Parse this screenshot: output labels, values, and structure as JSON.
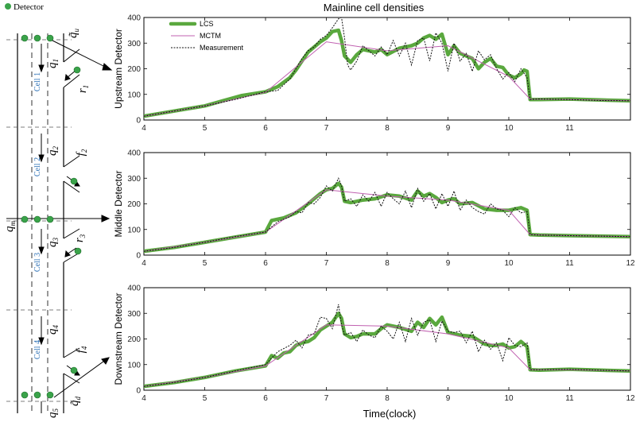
{
  "title": "Mainline cell densities",
  "xlabel": "Time(clock)",
  "detector_legend": "Detector",
  "colors": {
    "lcs": "#5aa83e",
    "mctm": "#c060b0",
    "measurement": "#111111",
    "detector": "#3aa34a",
    "cell_label": "#2a6fb5"
  },
  "diagram": {
    "cells": [
      "Cell 1",
      "Cell 2",
      "Cell 3",
      "Cell 4"
    ],
    "labels": {
      "qm": "q",
      "qm_sub": "m",
      "q1": "q",
      "q1_sub": "1",
      "q2": "q",
      "q2_sub": "2",
      "q3": "q",
      "q3_sub": "3",
      "q4": "q",
      "q4_sub": "4",
      "q5": "q",
      "q5_sub": "5",
      "qu": "q̃",
      "qu_sub": "u",
      "qd": "q̃",
      "qd_sub": "d",
      "r1": "r",
      "r1_sub": "1",
      "r3": "r",
      "r3_sub": "3",
      "f2": "f",
      "f2_sub": "2",
      "f4": "f",
      "f4_sub": "4"
    }
  },
  "chart_data": [
    {
      "type": "line",
      "ylabel": "Upstream Detector",
      "xlim": [
        4,
        12
      ],
      "ylim": [
        0,
        400
      ],
      "xticks": [
        "4",
        "5",
        "6",
        "7",
        "8",
        "9",
        "10",
        "11"
      ],
      "yticks": [
        "0",
        "100",
        "200",
        "300",
        "400"
      ],
      "legend": {
        "position": "top-left",
        "entries": [
          "LCS",
          "MCTM",
          "Measurement"
        ]
      },
      "series": [
        {
          "name": "LCS",
          "x": [
            4,
            4.5,
            5,
            5.3,
            5.6,
            6,
            6.2,
            6.4,
            6.5,
            6.6,
            6.7,
            6.8,
            6.9,
            7.0,
            7.1,
            7.2,
            7.25,
            7.3,
            7.4,
            7.5,
            7.6,
            7.7,
            7.8,
            7.9,
            8.0,
            8.2,
            8.4,
            8.5,
            8.6,
            8.7,
            8.8,
            8.9,
            9.0,
            9.1,
            9.2,
            9.3,
            9.4,
            9.5,
            9.6,
            9.7,
            9.8,
            9.9,
            10.0,
            10.1,
            10.2,
            10.25,
            10.3,
            10.35,
            10.5,
            11,
            11.5,
            12
          ],
          "y": [
            15,
            35,
            55,
            75,
            95,
            110,
            130,
            165,
            195,
            230,
            265,
            285,
            305,
            320,
            345,
            350,
            310,
            250,
            225,
            255,
            275,
            270,
            265,
            275,
            255,
            280,
            290,
            300,
            320,
            330,
            315,
            335,
            255,
            290,
            260,
            250,
            240,
            200,
            225,
            240,
            210,
            205,
            175,
            165,
            180,
            195,
            190,
            80,
            80,
            82,
            78,
            75
          ]
        },
        {
          "name": "MCTM",
          "x": [
            4,
            5,
            6,
            7,
            8,
            9,
            10,
            10.35,
            11,
            12
          ],
          "y": [
            15,
            55,
            108,
            305,
            270,
            290,
            170,
            82,
            80,
            75
          ]
        },
        {
          "name": "Measurement",
          "x": [
            4,
            4.5,
            5,
            5.5,
            6,
            6.2,
            6.4,
            6.5,
            6.6,
            6.7,
            6.8,
            6.9,
            7.0,
            7.1,
            7.2,
            7.25,
            7.3,
            7.35,
            7.4,
            7.5,
            7.6,
            7.7,
            7.8,
            7.9,
            8.0,
            8.1,
            8.2,
            8.3,
            8.4,
            8.5,
            8.6,
            8.7,
            8.8,
            8.9,
            9.0,
            9.1,
            9.2,
            9.3,
            9.4,
            9.5,
            9.6,
            9.7,
            9.8,
            9.9,
            10.0,
            10.1,
            10.2,
            10.3,
            10.35,
            10.5,
            11,
            11.5,
            12
          ],
          "y": [
            15,
            35,
            55,
            80,
            110,
            115,
            160,
            200,
            240,
            270,
            285,
            315,
            330,
            360,
            395,
            400,
            320,
            215,
            195,
            230,
            290,
            270,
            250,
            285,
            255,
            310,
            250,
            300,
            215,
            310,
            320,
            230,
            340,
            300,
            190,
            300,
            230,
            260,
            190,
            270,
            235,
            255,
            200,
            160,
            185,
            150,
            200,
            165,
            80,
            82,
            80,
            76,
            75
          ]
        }
      ]
    },
    {
      "type": "line",
      "ylabel": "Middle Detector",
      "xlim": [
        4,
        12
      ],
      "ylim": [
        0,
        400
      ],
      "xticks": [
        "4",
        "5",
        "6",
        "7",
        "8",
        "9",
        "10",
        "11",
        "12"
      ],
      "yticks": [
        "0",
        "100",
        "200",
        "300",
        "400"
      ],
      "series": [
        {
          "name": "LCS",
          "x": [
            4,
            4.5,
            5,
            5.5,
            6,
            6.1,
            6.3,
            6.5,
            6.7,
            6.9,
            7.0,
            7.1,
            7.2,
            7.25,
            7.3,
            7.4,
            7.5,
            7.6,
            7.8,
            8.0,
            8.2,
            8.4,
            8.5,
            8.6,
            8.7,
            8.8,
            8.9,
            9.0,
            9.1,
            9.2,
            9.4,
            9.6,
            9.8,
            10.0,
            10.1,
            10.2,
            10.3,
            10.35,
            10.5,
            11,
            11.5,
            12
          ],
          "y": [
            15,
            30,
            50,
            70,
            90,
            135,
            145,
            165,
            200,
            240,
            255,
            260,
            280,
            265,
            210,
            205,
            210,
            215,
            220,
            235,
            230,
            215,
            250,
            230,
            240,
            225,
            205,
            215,
            220,
            200,
            205,
            180,
            175,
            175,
            180,
            185,
            175,
            80,
            78,
            76,
            74,
            72
          ]
        },
        {
          "name": "MCTM",
          "x": [
            4,
            5,
            6,
            7,
            8,
            9,
            10,
            10.35,
            11,
            12
          ],
          "y": [
            15,
            50,
            90,
            255,
            230,
            215,
            175,
            80,
            76,
            72
          ]
        },
        {
          "name": "Measurement",
          "x": [
            4,
            4.5,
            5,
            5.5,
            6,
            6.2,
            6.4,
            6.5,
            6.6,
            6.7,
            6.8,
            6.9,
            7.0,
            7.1,
            7.2,
            7.25,
            7.3,
            7.4,
            7.5,
            7.6,
            7.7,
            7.8,
            7.9,
            8.0,
            8.1,
            8.2,
            8.3,
            8.4,
            8.5,
            8.6,
            8.7,
            8.8,
            8.9,
            9.0,
            9.1,
            9.2,
            9.3,
            9.4,
            9.5,
            9.6,
            9.7,
            9.8,
            9.9,
            10.0,
            10.1,
            10.2,
            10.3,
            10.35,
            10.5,
            11,
            11.5,
            12
          ],
          "y": [
            15,
            30,
            50,
            72,
            90,
            130,
            150,
            170,
            165,
            205,
            200,
            225,
            270,
            250,
            300,
            270,
            210,
            220,
            190,
            235,
            210,
            245,
            190,
            245,
            220,
            200,
            250,
            185,
            260,
            210,
            240,
            180,
            240,
            190,
            250,
            175,
            215,
            185,
            170,
            160,
            200,
            180,
            175,
            150,
            185,
            165,
            170,
            80,
            78,
            76,
            74,
            72
          ]
        }
      ]
    },
    {
      "type": "line",
      "ylabel": "Downstream Detector",
      "xlim": [
        4,
        12
      ],
      "ylim": [
        0,
        400
      ],
      "xticks": [
        "4",
        "5",
        "6",
        "7",
        "8",
        "9",
        "10",
        "11",
        "12"
      ],
      "yticks": [
        "0",
        "100",
        "200",
        "300",
        "400"
      ],
      "series": [
        {
          "name": "LCS",
          "x": [
            4,
            4.5,
            5,
            5.5,
            6,
            6.1,
            6.2,
            6.3,
            6.4,
            6.5,
            6.6,
            6.7,
            6.8,
            6.9,
            7.0,
            7.1,
            7.2,
            7.25,
            7.3,
            7.4,
            7.5,
            7.6,
            7.8,
            7.9,
            8.0,
            8.2,
            8.4,
            8.5,
            8.6,
            8.7,
            8.8,
            8.9,
            9.0,
            9.2,
            9.4,
            9.6,
            9.7,
            9.8,
            9.9,
            10.0,
            10.1,
            10.2,
            10.3,
            10.35,
            10.5,
            11,
            11.5,
            12
          ],
          "y": [
            15,
            30,
            50,
            75,
            95,
            135,
            125,
            145,
            150,
            175,
            185,
            190,
            205,
            235,
            250,
            265,
            300,
            280,
            220,
            205,
            210,
            220,
            220,
            240,
            255,
            245,
            230,
            265,
            245,
            280,
            255,
            285,
            225,
            215,
            210,
            180,
            175,
            175,
            180,
            165,
            170,
            190,
            170,
            80,
            78,
            82,
            78,
            75
          ]
        },
        {
          "name": "MCTM",
          "x": [
            4,
            5,
            6,
            7,
            8,
            9,
            10,
            10.35,
            11,
            12
          ],
          "y": [
            15,
            50,
            95,
            255,
            250,
            220,
            165,
            80,
            80,
            75
          ]
        },
        {
          "name": "Measurement",
          "x": [
            4,
            4.5,
            5,
            5.5,
            6,
            6.2,
            6.4,
            6.5,
            6.6,
            6.7,
            6.8,
            6.9,
            7.0,
            7.1,
            7.2,
            7.25,
            7.3,
            7.4,
            7.5,
            7.6,
            7.7,
            7.8,
            7.9,
            8.0,
            8.1,
            8.2,
            8.3,
            8.4,
            8.5,
            8.6,
            8.7,
            8.8,
            8.9,
            9.0,
            9.1,
            9.2,
            9.3,
            9.4,
            9.5,
            9.6,
            9.7,
            9.8,
            9.9,
            10.0,
            10.1,
            10.2,
            10.3,
            10.35,
            10.5,
            11,
            11.5,
            12
          ],
          "y": [
            15,
            30,
            50,
            75,
            100,
            150,
            175,
            195,
            165,
            215,
            220,
            285,
            280,
            240,
            335,
            255,
            215,
            225,
            190,
            235,
            215,
            205,
            250,
            230,
            200,
            265,
            190,
            280,
            215,
            265,
            275,
            190,
            270,
            230,
            225,
            230,
            185,
            230,
            150,
            195,
            160,
            185,
            115,
            205,
            175,
            170,
            185,
            80,
            80,
            82,
            78,
            75
          ]
        }
      ]
    }
  ]
}
